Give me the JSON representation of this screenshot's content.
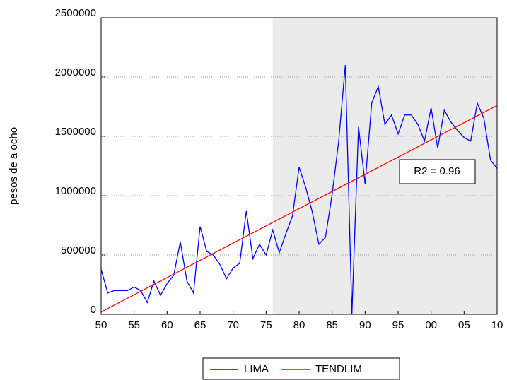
{
  "chart_data": {
    "type": "line",
    "y_label": "pesos de a ocho",
    "annotation": "R2 = 0.96",
    "x": [
      1750,
      1751,
      1752,
      1753,
      1754,
      1755,
      1756,
      1757,
      1758,
      1759,
      1760,
      1761,
      1762,
      1763,
      1764,
      1765,
      1766,
      1767,
      1768,
      1769,
      1770,
      1771,
      1772,
      1773,
      1774,
      1775,
      1776,
      1777,
      1778,
      1779,
      1780,
      1781,
      1782,
      1783,
      1784,
      1785,
      1786,
      1787,
      1788,
      1789,
      1790,
      1791,
      1792,
      1793,
      1794,
      1795,
      1796,
      1797,
      1798,
      1799,
      1800,
      1801,
      1802,
      1803,
      1804,
      1805,
      1806,
      1807,
      1808,
      1809,
      1810
    ],
    "series": [
      {
        "name": "LIMA",
        "color": "#0000ff",
        "values": [
          380000,
          180000,
          200000,
          200000,
          200000,
          230000,
          200000,
          100000,
          280000,
          160000,
          260000,
          330000,
          610000,
          280000,
          180000,
          740000,
          530000,
          500000,
          420000,
          300000,
          390000,
          430000,
          870000,
          470000,
          590000,
          500000,
          710000,
          520000,
          680000,
          830000,
          1240000,
          1070000,
          860000,
          590000,
          650000,
          1010000,
          1460000,
          2100000,
          0,
          1580000,
          1100000,
          1780000,
          1920000,
          1600000,
          1680000,
          1520000,
          1680000,
          1680000,
          1600000,
          1460000,
          1740000,
          1400000,
          1720000,
          1620000,
          1550000,
          1490000,
          1460000,
          1780000,
          1650000,
          1300000,
          1230000
        ]
      },
      {
        "name": "TENDLIM",
        "color": "#ff0000",
        "values": [
          20000,
          49000,
          78000,
          107000,
          136000,
          165000,
          194000,
          223000,
          252000,
          281000,
          310000,
          339000,
          368000,
          397000,
          426000,
          455000,
          484000,
          513000,
          542000,
          571000,
          600000,
          629000,
          658000,
          687000,
          716000,
          745000,
          774000,
          803000,
          832000,
          861000,
          890000,
          919000,
          948000,
          977000,
          1006000,
          1035000,
          1064000,
          1093000,
          1122000,
          1151000,
          1180000,
          1209000,
          1238000,
          1267000,
          1296000,
          1325000,
          1354000,
          1383000,
          1412000,
          1441000,
          1470000,
          1499000,
          1528000,
          1557000,
          1586000,
          1615000,
          1644000,
          1673000,
          1702000,
          1731000,
          1760000
        ]
      }
    ],
    "shade": [
      1776,
      1810
    ],
    "xlim": [
      1750,
      1810
    ],
    "xticks": [
      {
        "value": 1750,
        "label": "50"
      },
      {
        "value": 1755,
        "label": "55"
      },
      {
        "value": 1760,
        "label": "60"
      },
      {
        "value": 1765,
        "label": "65"
      },
      {
        "value": 1770,
        "label": "70"
      },
      {
        "value": 1775,
        "label": "75"
      },
      {
        "value": 1780,
        "label": "80"
      },
      {
        "value": 1785,
        "label": "85"
      },
      {
        "value": 1790,
        "label": "90"
      },
      {
        "value": 1795,
        "label": "95"
      },
      {
        "value": 1800,
        "label": "00"
      },
      {
        "value": 1805,
        "label": "05"
      },
      {
        "value": 1810,
        "label": "10"
      }
    ],
    "ylim": [
      0,
      2500000
    ],
    "yticks": [
      0,
      500000,
      1000000,
      1500000,
      2000000,
      2500000
    ],
    "grid": true
  }
}
